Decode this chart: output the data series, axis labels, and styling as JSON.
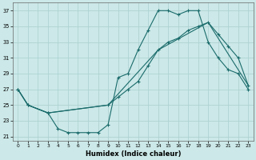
{
  "xlabel": "Humidex (Indice chaleur)",
  "xlim": [
    -0.5,
    23.5
  ],
  "ylim": [
    20.5,
    38
  ],
  "xticks": [
    0,
    1,
    2,
    3,
    4,
    5,
    6,
    7,
    8,
    9,
    10,
    11,
    12,
    13,
    14,
    15,
    16,
    17,
    18,
    19,
    20,
    21,
    22,
    23
  ],
  "yticks": [
    21,
    23,
    25,
    27,
    29,
    31,
    33,
    35,
    37
  ],
  "bg_color": "#cce8e8",
  "line_color": "#1a6b6b",
  "grid_color": "#aacfcf",
  "line1_x": [
    0,
    1,
    3,
    4,
    5,
    6,
    7,
    8,
    9,
    10,
    11,
    12,
    13,
    14,
    15,
    16,
    17,
    18,
    19,
    20,
    21,
    22,
    23
  ],
  "line1_y": [
    27,
    25,
    24,
    22,
    21.5,
    21.5,
    21.5,
    21.5,
    22.5,
    28.5,
    29,
    32,
    34.5,
    37,
    37,
    36.5,
    37,
    37,
    33,
    31,
    29.5,
    29,
    27
  ],
  "line2_x": [
    0,
    1,
    3,
    9,
    10,
    11,
    12,
    13,
    14,
    15,
    16,
    17,
    18,
    19,
    20,
    21,
    22,
    23
  ],
  "line2_y": [
    27,
    25,
    24,
    25,
    26,
    27,
    28,
    30,
    32,
    33,
    33.5,
    34.5,
    35,
    35.5,
    34,
    32.5,
    31,
    27.5
  ],
  "line3_x": [
    0,
    1,
    3,
    9,
    14,
    19,
    23
  ],
  "line3_y": [
    27,
    25,
    24,
    25,
    32,
    35.5,
    27.5
  ]
}
